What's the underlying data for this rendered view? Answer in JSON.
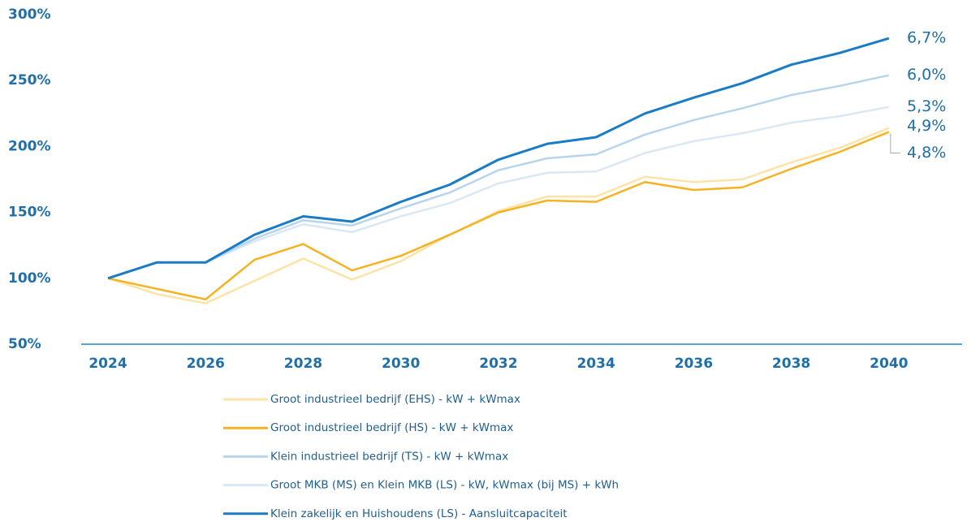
{
  "chart_data": {
    "type": "line",
    "x": [
      2024,
      2025,
      2026,
      2027,
      2028,
      2029,
      2030,
      2031,
      2032,
      2033,
      2034,
      2035,
      2036,
      2037,
      2038,
      2039,
      2040
    ],
    "xlim": [
      2024,
      2041.5
    ],
    "xticks": [
      2024,
      2026,
      2028,
      2030,
      2032,
      2034,
      2036,
      2038,
      2040
    ],
    "ylim": [
      50,
      300
    ],
    "yticks": [
      {
        "value": 50,
        "label": "50%"
      },
      {
        "value": 100,
        "label": "100%"
      },
      {
        "value": 150,
        "label": "150%"
      },
      {
        "value": 200,
        "label": "200%"
      },
      {
        "value": 250,
        "label": "250%"
      },
      {
        "value": 300,
        "label": "300%"
      }
    ],
    "grid": false,
    "legend": "bottom",
    "series": [
      {
        "name": "Groot industrieel bedrijf (EHS) - kW + kWmax",
        "color": "#fde3a7",
        "end_label": "4,9%",
        "values": [
          100,
          88,
          81,
          98,
          115,
          99,
          113,
          133,
          151,
          162,
          162,
          177,
          173,
          175,
          188,
          199,
          214
        ]
      },
      {
        "name": "Groot industrieel bedrijf (HS) - kW + kWmax",
        "color": "#f6b221",
        "end_label": "4,8%",
        "values": [
          100,
          92,
          84,
          114,
          126,
          106,
          117,
          133,
          150,
          159,
          158,
          173,
          167,
          169,
          183,
          196,
          211
        ]
      },
      {
        "name": "Klein industrieel bedrijf (TS) - kW + kWmax",
        "color": "#b8d4ec",
        "end_label": "6,0%",
        "values": [
          100,
          112,
          112,
          130,
          144,
          140,
          153,
          165,
          182,
          191,
          194,
          209,
          220,
          229,
          239,
          246,
          254
        ]
      },
      {
        "name": "Groot MKB (MS) en Klein MKB (LS) - kW, kWmax (bij MS) + kWh",
        "color": "#dae8f5",
        "end_label": "5,3%",
        "values": [
          100,
          112,
          112,
          128,
          141,
          135,
          147,
          157,
          172,
          180,
          181,
          195,
          204,
          210,
          218,
          223,
          230
        ]
      },
      {
        "name": "Klein zakelijk en Huishoudens (LS) - Aansluitcapaciteit",
        "color": "#1a7cc4",
        "end_label": "6,7%",
        "values": [
          100,
          112,
          112,
          133,
          147,
          143,
          158,
          171,
          190,
          202,
          207,
          225,
          237,
          248,
          262,
          271,
          282
        ]
      }
    ]
  }
}
